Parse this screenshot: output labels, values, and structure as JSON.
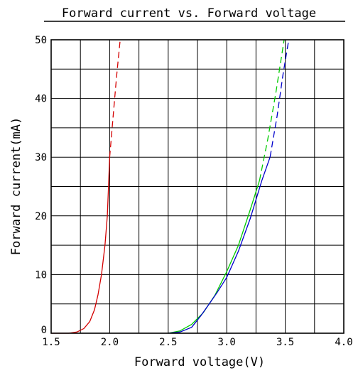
{
  "chart_data": {
    "type": "line",
    "title": "Forward current vs. Forward voltage",
    "xlabel": "Forward voltage(V)",
    "ylabel": "Forward current(mA)",
    "xlim": [
      1.5,
      4.0
    ],
    "ylim": [
      0,
      50
    ],
    "x_ticks": [
      "1.5",
      "2.0",
      "2.5",
      "3.0",
      "3.5",
      "4.0"
    ],
    "y_ticks": [
      "0",
      "10",
      "20",
      "30",
      "40",
      "50"
    ],
    "grid": true,
    "legend": "none",
    "series": [
      {
        "color": "#d40000",
        "solid": [
          [
            1.5,
            0
          ],
          [
            1.65,
            0
          ],
          [
            1.72,
            0.2
          ],
          [
            1.78,
            0.8
          ],
          [
            1.83,
            2
          ],
          [
            1.87,
            4
          ],
          [
            1.9,
            6.5
          ],
          [
            1.93,
            10
          ],
          [
            1.96,
            15
          ],
          [
            1.98,
            20
          ],
          [
            2.0,
            30
          ]
        ],
        "dashed": [
          [
            2.0,
            30
          ],
          [
            2.03,
            37
          ],
          [
            2.06,
            44
          ],
          [
            2.09,
            50
          ]
        ]
      },
      {
        "color": "#00cc00",
        "solid": [
          [
            2.5,
            0
          ],
          [
            2.6,
            0.4
          ],
          [
            2.7,
            1.5
          ],
          [
            2.8,
            3.5
          ],
          [
            2.9,
            6.5
          ],
          [
            3.0,
            10.5
          ],
          [
            3.1,
            15
          ],
          [
            3.2,
            21
          ],
          [
            3.28,
            26
          ]
        ],
        "dashed": [
          [
            3.28,
            26
          ],
          [
            3.35,
            33
          ],
          [
            3.42,
            41
          ],
          [
            3.49,
            50
          ]
        ]
      },
      {
        "color": "#0000cc",
        "solid": [
          [
            2.5,
            0
          ],
          [
            2.6,
            0.2
          ],
          [
            2.7,
            1
          ],
          [
            2.78,
            3
          ],
          [
            2.85,
            5
          ],
          [
            2.92,
            7
          ],
          [
            3.0,
            9.5
          ],
          [
            3.1,
            14
          ],
          [
            3.2,
            19.5
          ],
          [
            3.3,
            26
          ],
          [
            3.37,
            30
          ]
        ],
        "dashed": [
          [
            3.37,
            30
          ],
          [
            3.43,
            37
          ],
          [
            3.48,
            44
          ],
          [
            3.53,
            50
          ]
        ]
      }
    ]
  }
}
